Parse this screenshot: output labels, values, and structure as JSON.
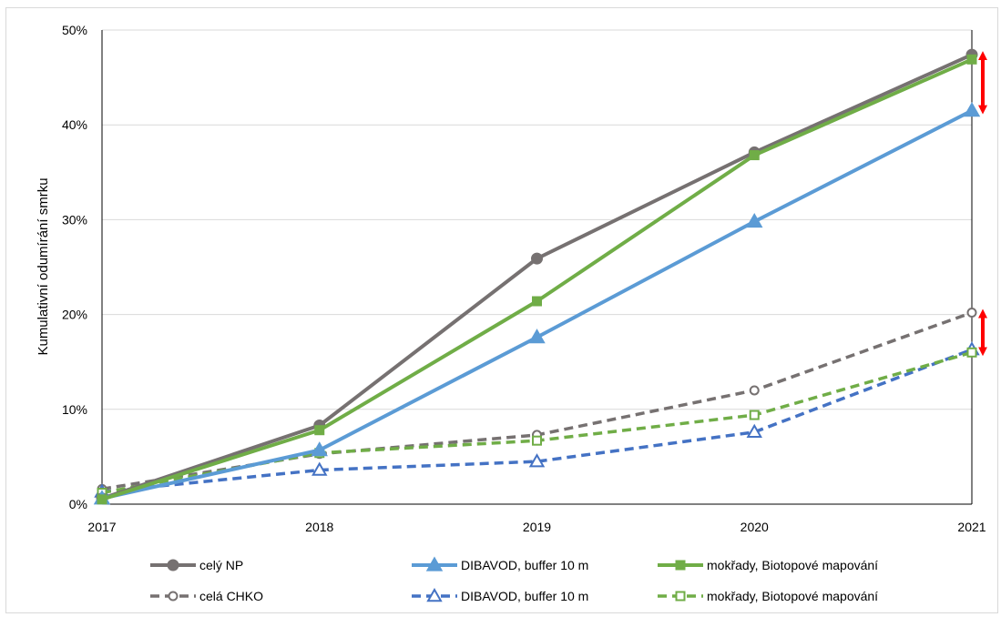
{
  "chart_data": {
    "type": "line",
    "x": [
      2017,
      2018,
      2019,
      2020,
      2021
    ],
    "xlim": [
      2017,
      2021
    ],
    "ylim": [
      0,
      50
    ],
    "yticks": [
      0,
      10,
      20,
      30,
      40,
      50
    ],
    "ytick_labels": [
      "0%",
      "10%",
      "20%",
      "30%",
      "40%",
      "50%"
    ],
    "xtick_labels": [
      "2017",
      "2018",
      "2019",
      "2020",
      "2021"
    ],
    "ylabel": "Kumulativní odumírání smrku",
    "grid": "horizontal",
    "legend_position": "bottom",
    "series": [
      {
        "name": "celý NP",
        "values": [
          0.6,
          8.3,
          25.9,
          37.1,
          47.4
        ],
        "color": "#767171",
        "dash": "solid",
        "marker": "circle-filled"
      },
      {
        "name": "DIBAVOD, buffer 10 m",
        "values": [
          0.6,
          5.7,
          17.6,
          29.8,
          41.5
        ],
        "color": "#5b9bd5",
        "dash": "solid",
        "marker": "triangle-filled"
      },
      {
        "name": "mokřady, Biotopové mapování",
        "values": [
          0.5,
          7.8,
          21.4,
          36.8,
          46.9
        ],
        "color": "#70ad47",
        "dash": "solid",
        "marker": "square-filled"
      },
      {
        "name": "celá CHKO",
        "values": [
          1.6,
          5.3,
          7.3,
          12.0,
          20.2
        ],
        "color": "#767171",
        "dash": "dashed",
        "marker": "circle-open"
      },
      {
        "name": "DIBAVOD, buffer 10 m",
        "values": [
          1.3,
          3.6,
          4.5,
          7.6,
          16.3
        ],
        "color": "#4472c4",
        "dash": "dashed",
        "marker": "triangle-open"
      },
      {
        "name": "mokřady, Biotopové mapování",
        "values": [
          1.2,
          5.4,
          6.7,
          9.4,
          16.0
        ],
        "color": "#70ad47",
        "dash": "dashed",
        "marker": "square-open"
      }
    ],
    "annotations": [
      {
        "type": "double-arrow",
        "x": 2021,
        "from": 41.5,
        "to": 47.4,
        "color": "#ff0000"
      },
      {
        "type": "double-arrow",
        "x": 2021,
        "from": 16.0,
        "to": 20.2,
        "color": "#ff0000"
      }
    ]
  }
}
